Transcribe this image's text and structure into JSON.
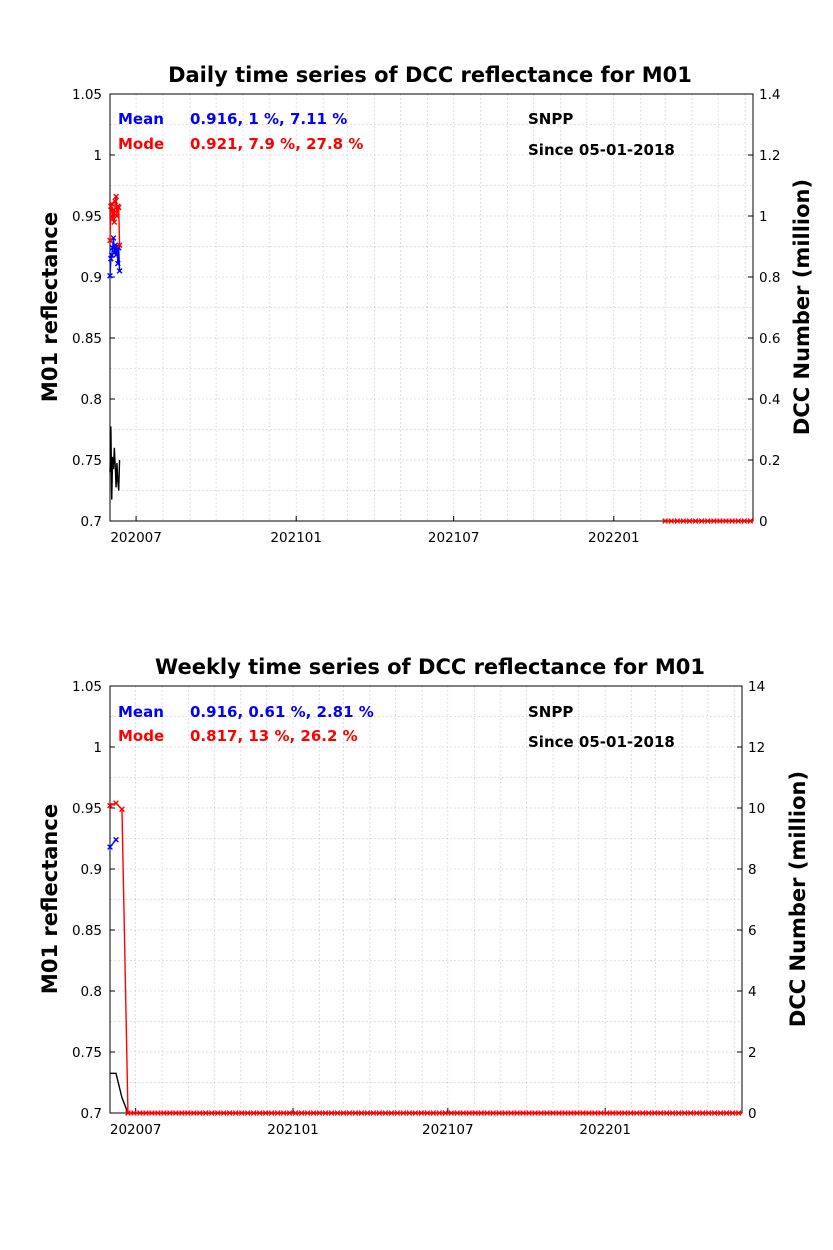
{
  "chart_data": [
    {
      "type": "line",
      "title": "Daily time series of DCC reflectance for M01",
      "ylabel": "M01 reflectance",
      "y2label": "DCC Number (million)",
      "ylim": [
        0.7,
        1.05
      ],
      "y2lim": [
        0,
        1.4
      ],
      "yticks": [
        "0.7",
        "0.75",
        "0.8",
        "0.85",
        "0.9",
        "0.95",
        "1",
        "1.05"
      ],
      "y2ticks": [
        "0",
        "0.2",
        "0.4",
        "0.6",
        "0.8",
        "1",
        "1.2",
        "1.4"
      ],
      "xlim": [
        "2020-06-01",
        "2022-06-10"
      ],
      "xticks": [
        {
          "label": "202007",
          "date": "2020-07-01"
        },
        {
          "label": "202101",
          "date": "2021-01-01"
        },
        {
          "label": "202107",
          "date": "2021-07-01"
        },
        {
          "label": "202201",
          "date": "2022-01-01"
        }
      ],
      "grid": true,
      "annotations": {
        "mean_label": "Mean",
        "mean_stats": "0.916, 1 %, 7.11 %",
        "mode_label": "Mode",
        "mode_stats": "0.921, 7.9 %, 27.8 %",
        "satellite": "SNPP",
        "since": "Since 05-01-2018"
      },
      "series": [
        {
          "role": "mean",
          "color": "#0000ff",
          "axis": "left",
          "marker": "x",
          "x": [
            "2020-06-01",
            "2020-06-02",
            "2020-06-03",
            "2020-06-04",
            "2020-06-05",
            "2020-06-06",
            "2020-06-07",
            "2020-06-08",
            "2020-06-09",
            "2020-06-10",
            "2020-06-11",
            "2020-06-12"
          ],
          "y": [
            0.901,
            0.915,
            0.918,
            0.924,
            0.932,
            0.92,
            0.926,
            0.918,
            0.925,
            0.911,
            0.924,
            0.905
          ]
        },
        {
          "role": "mode",
          "color": "#ff0000",
          "axis": "left",
          "marker": "x",
          "x": [
            "2020-06-01",
            "2020-06-02",
            "2020-06-03",
            "2020-06-04",
            "2020-06-05",
            "2020-06-06",
            "2020-06-07",
            "2020-06-08",
            "2020-06-09",
            "2020-06-10",
            "2020-06-11",
            "2020-06-12"
          ],
          "y": [
            0.93,
            0.958,
            0.96,
            0.948,
            0.955,
            0.945,
            0.962,
            0.966,
            0.95,
            0.958,
            0.957,
            0.926
          ]
        },
        {
          "role": "count",
          "color": "#000000",
          "axis": "right",
          "marker": "none",
          "x": [
            "2020-06-01",
            "2020-06-02",
            "2020-06-03",
            "2020-06-04",
            "2020-06-05",
            "2020-06-06",
            "2020-06-07",
            "2020-06-08",
            "2020-06-09",
            "2020-06-10",
            "2020-06-11",
            "2020-06-12"
          ],
          "y": [
            0.16,
            0.31,
            0.07,
            0.21,
            0.17,
            0.24,
            0.18,
            0.11,
            0.19,
            0.13,
            0.1,
            0.2
          ]
        },
        {
          "role": "count",
          "color": "#000000",
          "axis": "right",
          "marker": "none",
          "x": [
            "2022-03-01",
            "2022-06-10"
          ],
          "y": [
            0,
            0
          ]
        },
        {
          "role": "mode",
          "color": "#ff0000",
          "axis": "right",
          "marker": "x",
          "dense": true,
          "x": [
            "2022-03-01",
            "2022-06-10"
          ],
          "y": [
            0,
            0
          ]
        }
      ]
    },
    {
      "type": "line",
      "title": "Weekly time series of DCC reflectance for M01",
      "ylabel": "M01 reflectance",
      "y2label": "DCC Number (million)",
      "ylim": [
        0.7,
        1.05
      ],
      "y2lim": [
        0,
        14
      ],
      "yticks": [
        "0.7",
        "0.75",
        "0.8",
        "0.85",
        "0.9",
        "0.95",
        "1",
        "1.05"
      ],
      "y2ticks": [
        "0",
        "2",
        "4",
        "6",
        "8",
        "10",
        "12",
        "14"
      ],
      "xlim": [
        "2020-06-01",
        "2022-06-10"
      ],
      "xticks": [
        {
          "label": "202007",
          "date": "2020-07-01"
        },
        {
          "label": "202101",
          "date": "2021-01-01"
        },
        {
          "label": "202107",
          "date": "2021-07-01"
        },
        {
          "label": "202201",
          "date": "2022-01-01"
        }
      ],
      "grid": true,
      "annotations": {
        "mean_label": "Mean",
        "mean_stats": "0.916, 0.61 %, 2.81 %",
        "mode_label": "Mode",
        "mode_stats": "0.817, 13 %, 26.2 %",
        "satellite": "SNPP",
        "since": "Since 05-01-2018"
      },
      "series": [
        {
          "role": "mean",
          "color": "#0000ff",
          "axis": "left",
          "marker": "x",
          "x": [
            "2020-06-01",
            "2020-06-08"
          ],
          "y": [
            0.918,
            0.924
          ]
        },
        {
          "role": "mode",
          "color": "#ff0000",
          "axis": "left",
          "marker": "x",
          "x": [
            "2020-06-01",
            "2020-06-08",
            "2020-06-15"
          ],
          "y": [
            0.952,
            0.954,
            0.949
          ]
        },
        {
          "role": "count",
          "color": "#000000",
          "axis": "right",
          "marker": "none",
          "x": [
            "2020-06-01",
            "2020-06-08",
            "2020-06-15",
            "2020-06-22"
          ],
          "y": [
            1.3,
            1.3,
            0.5,
            0
          ]
        },
        {
          "role": "count",
          "color": "#000000",
          "axis": "right",
          "marker": "none",
          "x": [
            "2020-06-22",
            "2022-06-10"
          ],
          "y": [
            0,
            0
          ]
        },
        {
          "role": "mode",
          "color": "#ff0000",
          "axis": "left",
          "marker": "none",
          "x": [
            "2020-06-15",
            "2020-06-22"
          ],
          "y": [
            0.949,
            0.7
          ]
        },
        {
          "role": "mode",
          "color": "#ff0000",
          "axis": "left",
          "marker": "x",
          "dense": true,
          "x": [
            "2020-06-22",
            "2022-06-10"
          ],
          "y": [
            0.7,
            0.7
          ]
        }
      ]
    }
  ]
}
